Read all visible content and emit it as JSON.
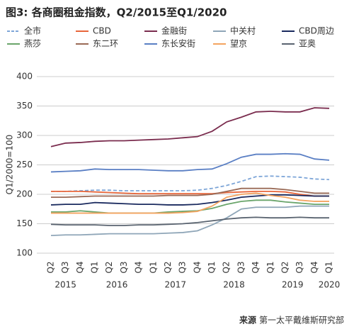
{
  "chart_data": {
    "type": "line",
    "title": "图3: 各商圈租金指数，Q2/2015至Q1/2020",
    "y_label": "Q1/2000=100",
    "source_label": "来源",
    "source": "第一太平戴维斯研究部",
    "categories": [
      "Q2",
      "Q3",
      "Q4",
      "Q1",
      "Q2",
      "Q3",
      "Q4",
      "Q1",
      "Q2",
      "Q3",
      "Q4",
      "Q1",
      "Q2",
      "Q3",
      "Q4",
      "Q1",
      "Q2",
      "Q3",
      "Q4",
      "Q1"
    ],
    "years": [
      {
        "label": "2015",
        "span": [
          0,
          2
        ]
      },
      {
        "label": "2016",
        "span": [
          3,
          6
        ]
      },
      {
        "label": "2017",
        "span": [
          7,
          10
        ]
      },
      {
        "label": "2018",
        "span": [
          11,
          14
        ]
      },
      {
        "label": "2019",
        "span": [
          15,
          18
        ]
      },
      {
        "label": "2020",
        "span": [
          19,
          19
        ]
      }
    ],
    "ylim": [
      100,
      400
    ],
    "yticks": [
      100,
      150,
      200,
      250,
      300,
      350,
      400
    ],
    "grid": true,
    "series": [
      {
        "name": "全市",
        "color": "#7ea6d8",
        "dashed": true,
        "values": [
          205,
          205,
          206,
          207,
          207,
          206,
          206,
          206,
          206,
          206,
          207,
          210,
          215,
          222,
          230,
          231,
          230,
          229,
          226,
          225
        ]
      },
      {
        "name": "CBD",
        "color": "#e8663a",
        "values": [
          205,
          205,
          205,
          204,
          203,
          202,
          201,
          201,
          201,
          201,
          201,
          201,
          203,
          204,
          205,
          205,
          204,
          200,
          197,
          197
        ]
      },
      {
        "name": "金融街",
        "color": "#7a2c4e",
        "values": [
          281,
          287,
          288,
          290,
          291,
          291,
          292,
          293,
          294,
          296,
          298,
          307,
          323,
          331,
          340,
          341,
          340,
          340,
          347,
          346
        ]
      },
      {
        "name": "中关村",
        "color": "#8fa6b8",
        "values": [
          130,
          131,
          131,
          132,
          133,
          133,
          133,
          133,
          134,
          135,
          138,
          148,
          160,
          175,
          178,
          178,
          178,
          180,
          180,
          180
        ]
      },
      {
        "name": "CBD周边",
        "color": "#1a2a5e",
        "values": [
          182,
          183,
          183,
          186,
          185,
          184,
          183,
          183,
          182,
          182,
          183,
          186,
          190,
          195,
          197,
          199,
          199,
          198,
          197,
          197
        ]
      },
      {
        "name": "燕莎",
        "color": "#6aa56b",
        "values": [
          170,
          170,
          172,
          170,
          168,
          168,
          168,
          168,
          170,
          171,
          172,
          176,
          183,
          188,
          190,
          190,
          187,
          185,
          183,
          183
        ]
      },
      {
        "name": "东二环",
        "color": "#9a6a56",
        "values": [
          195,
          195,
          196,
          197,
          197,
          197,
          197,
          197,
          198,
          198,
          198,
          200,
          205,
          210,
          210,
          210,
          208,
          205,
          202,
          202
        ]
      },
      {
        "name": "东长安街",
        "color": "#5a7fc4",
        "values": [
          238,
          239,
          240,
          243,
          242,
          242,
          242,
          241,
          240,
          240,
          242,
          243,
          252,
          263,
          268,
          268,
          269,
          268,
          260,
          258
        ]
      },
      {
        "name": "望京",
        "color": "#f4a460",
        "values": [
          168,
          168,
          168,
          168,
          168,
          168,
          168,
          168,
          168,
          169,
          171,
          180,
          195,
          200,
          202,
          198,
          195,
          190,
          188,
          188
        ]
      },
      {
        "name": "亚奥",
        "color": "#5a6470",
        "values": [
          149,
          148,
          148,
          148,
          147,
          147,
          148,
          148,
          149,
          150,
          152,
          155,
          158,
          160,
          161,
          160,
          160,
          161,
          160,
          160
        ]
      }
    ]
  }
}
